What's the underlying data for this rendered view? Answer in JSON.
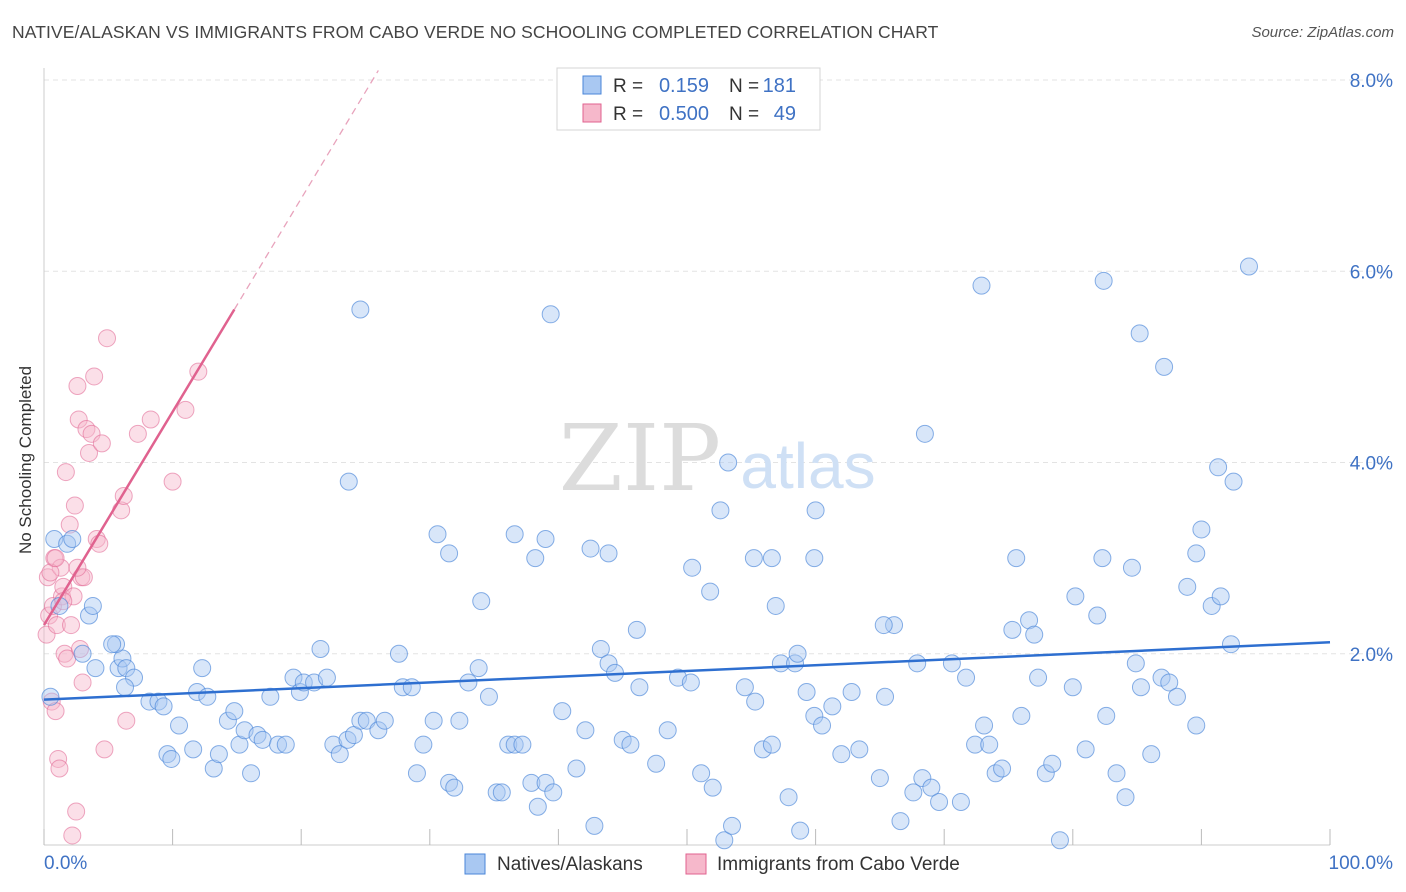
{
  "title": "NATIVE/ALASKAN VS IMMIGRANTS FROM CABO VERDE NO SCHOOLING COMPLETED CORRELATION CHART",
  "source": "Source: ZipAtlas.com",
  "watermark": {
    "zip": "ZIP",
    "atlas": "atlas"
  },
  "colors": {
    "blue": "#4a86d8",
    "blue_fill": "#a9c8f2",
    "pink": "#e0628f",
    "pink_fill": "#f6b8cb",
    "axis_label": "#3f72c4"
  },
  "stats_box": {
    "rows": [
      {
        "r_label": "R =",
        "r_value": "0.159",
        "n_label": "N =",
        "n_value": "181"
      },
      {
        "r_label": "R =",
        "r_value": "0.500",
        "n_label": "N =",
        "n_value": "49"
      }
    ]
  },
  "chart_data": {
    "type": "scatter",
    "title": "NATIVE/ALASKAN VS IMMIGRANTS FROM CABO VERDE NO SCHOOLING COMPLETED CORRELATION CHART",
    "xlabel": "",
    "ylabel": "No Schooling Completed",
    "xlim": [
      0,
      100
    ],
    "ylim": [
      0,
      8.0
    ],
    "x_tick_labels": {
      "min": "0.0%",
      "max": "100.0%"
    },
    "y_ticks": [
      {
        "value": 2.0,
        "label": "2.0%"
      },
      {
        "value": 4.0,
        "label": "4.0%"
      },
      {
        "value": 6.0,
        "label": "6.0%"
      },
      {
        "value": 8.0,
        "label": "8.0%"
      }
    ],
    "grid": true,
    "legend_position": "bottom-center",
    "series": [
      {
        "name": "Natives/Alaskans",
        "color": "#4a86d8",
        "trend": {
          "x": [
            0,
            100
          ],
          "y": [
            1.52,
            2.12
          ]
        },
        "points": [
          [
            0.5,
            1.55
          ],
          [
            0.8,
            3.2
          ],
          [
            1.2,
            2.5
          ],
          [
            1.8,
            3.15
          ],
          [
            2.2,
            3.2
          ],
          [
            3.5,
            2.4
          ],
          [
            3.8,
            2.5
          ],
          [
            5.8,
            1.85
          ],
          [
            6.1,
            1.95
          ],
          [
            5.6,
            2.1
          ],
          [
            6.4,
            1.85
          ],
          [
            7.0,
            1.75
          ],
          [
            6.3,
            1.65
          ],
          [
            8.2,
            1.5
          ],
          [
            8.9,
            1.5
          ],
          [
            9.3,
            1.45
          ],
          [
            9.6,
            0.95
          ],
          [
            9.9,
            0.9
          ],
          [
            10.5,
            1.25
          ],
          [
            11.6,
            1.0
          ],
          [
            11.9,
            1.6
          ],
          [
            12.3,
            1.85
          ],
          [
            12.7,
            1.55
          ],
          [
            13.2,
            0.8
          ],
          [
            13.6,
            0.95
          ],
          [
            14.3,
            1.3
          ],
          [
            14.8,
            1.4
          ],
          [
            15.2,
            1.05
          ],
          [
            15.6,
            1.2
          ],
          [
            16.1,
            0.75
          ],
          [
            16.6,
            1.15
          ],
          [
            17.0,
            1.1
          ],
          [
            17.6,
            1.55
          ],
          [
            18.2,
            1.05
          ],
          [
            18.8,
            1.05
          ],
          [
            19.4,
            1.75
          ],
          [
            19.9,
            1.6
          ],
          [
            20.2,
            1.7
          ],
          [
            21.0,
            1.7
          ],
          [
            21.5,
            2.05
          ],
          [
            22.0,
            1.75
          ],
          [
            22.5,
            1.05
          ],
          [
            23.0,
            0.95
          ],
          [
            23.6,
            1.1
          ],
          [
            24.1,
            1.15
          ],
          [
            24.6,
            1.3
          ],
          [
            25.1,
            1.3
          ],
          [
            26.0,
            1.2
          ],
          [
            26.5,
            1.3
          ],
          [
            27.6,
            2.0
          ],
          [
            27.9,
            1.65
          ],
          [
            28.6,
            1.65
          ],
          [
            29.0,
            0.75
          ],
          [
            29.5,
            1.05
          ],
          [
            30.3,
            1.3
          ],
          [
            31.5,
            0.65
          ],
          [
            31.9,
            0.6
          ],
          [
            32.3,
            1.3
          ],
          [
            33.0,
            1.7
          ],
          [
            33.8,
            1.85
          ],
          [
            34.6,
            1.55
          ],
          [
            35.2,
            0.55
          ],
          [
            35.6,
            0.55
          ],
          [
            36.1,
            1.05
          ],
          [
            36.6,
            1.05
          ],
          [
            37.2,
            1.05
          ],
          [
            37.9,
            0.65
          ],
          [
            38.4,
            0.4
          ],
          [
            39.0,
            0.65
          ],
          [
            39.6,
            0.55
          ],
          [
            40.3,
            1.4
          ],
          [
            41.4,
            0.8
          ],
          [
            42.1,
            1.2
          ],
          [
            42.8,
            0.2
          ],
          [
            43.3,
            2.05
          ],
          [
            43.9,
            1.9
          ],
          [
            44.4,
            1.8
          ],
          [
            45.0,
            1.1
          ],
          [
            45.6,
            1.05
          ],
          [
            46.3,
            1.65
          ],
          [
            47.6,
            0.85
          ],
          [
            48.5,
            1.2
          ],
          [
            49.3,
            1.75
          ],
          [
            50.3,
            1.7
          ],
          [
            51.1,
            0.75
          ],
          [
            52.0,
            0.6
          ],
          [
            52.9,
            0.05
          ],
          [
            53.5,
            0.2
          ],
          [
            54.5,
            1.65
          ],
          [
            55.3,
            1.5
          ],
          [
            55.9,
            1.0
          ],
          [
            56.6,
            1.05
          ],
          [
            57.3,
            1.9
          ],
          [
            57.9,
            0.5
          ],
          [
            58.4,
            1.9
          ],
          [
            58.8,
            0.15
          ],
          [
            59.3,
            1.6
          ],
          [
            59.9,
            1.35
          ],
          [
            60.5,
            1.25
          ],
          [
            61.3,
            1.45
          ],
          [
            62.0,
            0.95
          ],
          [
            62.8,
            1.6
          ],
          [
            63.4,
            1.0
          ],
          [
            65.0,
            0.7
          ],
          [
            65.4,
            1.55
          ],
          [
            66.1,
            2.3
          ],
          [
            66.6,
            0.25
          ],
          [
            67.6,
            0.55
          ],
          [
            68.3,
            0.7
          ],
          [
            69.0,
            0.6
          ],
          [
            69.6,
            0.45
          ],
          [
            70.6,
            1.9
          ],
          [
            71.3,
            0.45
          ],
          [
            71.7,
            1.75
          ],
          [
            72.4,
            1.05
          ],
          [
            73.1,
            1.25
          ],
          [
            73.5,
            1.05
          ],
          [
            74.0,
            0.75
          ],
          [
            74.5,
            0.8
          ],
          [
            75.3,
            2.25
          ],
          [
            76.0,
            1.35
          ],
          [
            76.6,
            2.35
          ],
          [
            77.3,
            1.75
          ],
          [
            77.9,
            0.75
          ],
          [
            78.4,
            0.85
          ],
          [
            79.0,
            0.05
          ],
          [
            80.0,
            1.65
          ],
          [
            81.0,
            1.0
          ],
          [
            81.9,
            2.4
          ],
          [
            82.6,
            1.35
          ],
          [
            83.4,
            0.75
          ],
          [
            84.1,
            0.5
          ],
          [
            84.9,
            1.9
          ],
          [
            85.3,
            1.65
          ],
          [
            86.1,
            0.95
          ],
          [
            86.9,
            1.75
          ],
          [
            87.5,
            1.7
          ],
          [
            88.1,
            1.55
          ],
          [
            88.9,
            2.7
          ],
          [
            89.6,
            1.25
          ],
          [
            90.0,
            3.3
          ],
          [
            90.8,
            2.5
          ],
          [
            91.5,
            2.6
          ],
          [
            92.3,
            2.1
          ],
          [
            82.3,
            3.0
          ],
          [
            84.6,
            2.9
          ],
          [
            80.2,
            2.6
          ],
          [
            75.6,
            3.0
          ],
          [
            77.0,
            2.2
          ],
          [
            67.9,
            1.9
          ],
          [
            65.3,
            2.3
          ],
          [
            59.9,
            3.0
          ],
          [
            58.6,
            2.0
          ],
          [
            56.9,
            2.5
          ],
          [
            60.0,
            3.5
          ],
          [
            51.8,
            2.65
          ],
          [
            50.4,
            2.9
          ],
          [
            46.1,
            2.25
          ],
          [
            39.0,
            3.2
          ],
          [
            38.2,
            3.0
          ],
          [
            36.6,
            3.25
          ],
          [
            34.0,
            2.55
          ],
          [
            31.5,
            3.05
          ],
          [
            30.6,
            3.25
          ],
          [
            23.7,
            3.8
          ],
          [
            43.9,
            3.05
          ],
          [
            42.5,
            3.1
          ],
          [
            52.6,
            3.5
          ],
          [
            55.2,
            3.0
          ],
          [
            56.6,
            3.0
          ],
          [
            68.5,
            4.3
          ],
          [
            53.2,
            4.0
          ],
          [
            91.3,
            3.95
          ],
          [
            92.5,
            3.8
          ],
          [
            89.6,
            3.05
          ],
          [
            87.1,
            5.0
          ],
          [
            85.2,
            5.35
          ],
          [
            82.4,
            5.9
          ],
          [
            72.9,
            5.85
          ],
          [
            39.4,
            5.55
          ],
          [
            24.6,
            5.6
          ],
          [
            93.7,
            6.05
          ],
          [
            5.3,
            2.1
          ],
          [
            4.0,
            1.85
          ],
          [
            3.0,
            2.0
          ]
        ]
      },
      {
        "name": "Immigrants from Cabo Verde",
        "color": "#e0628f",
        "trend": {
          "x": [
            0,
            14.8
          ],
          "y": [
            2.3,
            5.6
          ]
        },
        "trend_extension": {
          "x": [
            14.8,
            26.0
          ],
          "y": [
            5.6,
            8.1
          ]
        },
        "points": [
          [
            0.2,
            2.2
          ],
          [
            0.3,
            2.8
          ],
          [
            0.4,
            2.4
          ],
          [
            0.6,
            1.5
          ],
          [
            0.7,
            2.5
          ],
          [
            0.8,
            3.0
          ],
          [
            0.9,
            1.4
          ],
          [
            1.0,
            2.3
          ],
          [
            1.1,
            0.9
          ],
          [
            1.2,
            0.8
          ],
          [
            1.3,
            2.9
          ],
          [
            1.4,
            2.6
          ],
          [
            1.5,
            2.7
          ],
          [
            1.6,
            2.0
          ],
          [
            1.7,
            3.9
          ],
          [
            1.8,
            1.95
          ],
          [
            2.0,
            3.35
          ],
          [
            2.1,
            2.3
          ],
          [
            2.2,
            0.1
          ],
          [
            2.3,
            2.6
          ],
          [
            2.4,
            3.55
          ],
          [
            2.5,
            0.35
          ],
          [
            2.6,
            4.8
          ],
          [
            2.7,
            4.45
          ],
          [
            2.8,
            2.05
          ],
          [
            2.9,
            2.8
          ],
          [
            3.0,
            1.7
          ],
          [
            3.1,
            2.8
          ],
          [
            3.3,
            4.35
          ],
          [
            3.5,
            4.1
          ],
          [
            3.7,
            4.3
          ],
          [
            3.9,
            4.9
          ],
          [
            4.1,
            3.2
          ],
          [
            4.3,
            3.15
          ],
          [
            4.5,
            4.2
          ],
          [
            4.7,
            1.0
          ],
          [
            4.9,
            5.3
          ],
          [
            6.0,
            3.5
          ],
          [
            6.2,
            3.65
          ],
          [
            6.4,
            1.3
          ],
          [
            7.3,
            4.3
          ],
          [
            8.3,
            4.45
          ],
          [
            10.0,
            3.8
          ],
          [
            11.0,
            4.55
          ],
          [
            12.0,
            4.95
          ],
          [
            0.5,
            2.85
          ],
          [
            0.9,
            3.0
          ],
          [
            1.5,
            2.55
          ],
          [
            2.6,
            2.9
          ]
        ]
      }
    ]
  },
  "legend": {
    "items": [
      {
        "label": "Natives/Alaskans"
      },
      {
        "label": "Immigrants from Cabo Verde"
      }
    ]
  }
}
